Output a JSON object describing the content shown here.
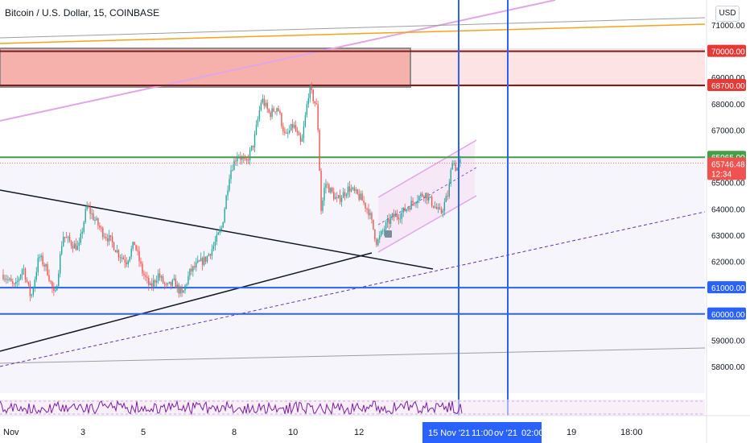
{
  "header": {
    "title": "Bitcoin / U.S. Dollar, 15, COINBASE",
    "currency": "USD"
  },
  "colors": {
    "up": "#26a69a",
    "down": "#ef5350",
    "blue_line": "#2962ff",
    "green_line": "#43a047",
    "red_zone_fill": "#f4a09a",
    "red_zone_stroke": "#7d1f1f",
    "rsi": "#7b1fa2",
    "pink_channel": "#e1a6e6",
    "orange_line": "#f7a21b"
  },
  "chart_data": {
    "type": "candlestick",
    "title": "Bitcoin / U.S. Dollar, 15, COINBASE",
    "y_range": [
      57300,
      72000
    ],
    "y_ticks": [
      58000,
      59000,
      60000,
      61000,
      62000,
      63000,
      64000,
      65000,
      66000,
      67000,
      68000,
      69000,
      70000,
      71000
    ],
    "x_ticks": [
      "Nov",
      "3",
      "5",
      "8",
      "10",
      "12",
      "19",
      "18:00"
    ],
    "price_path": [
      [
        0,
        61500
      ],
      [
        3,
        61000
      ],
      [
        5,
        61800
      ],
      [
        7,
        60600
      ],
      [
        9,
        62200
      ],
      [
        11,
        61700
      ],
      [
        13,
        60600
      ],
      [
        15,
        63000
      ],
      [
        17,
        62700
      ],
      [
        19,
        62500
      ],
      [
        21,
        64100
      ],
      [
        23,
        63600
      ],
      [
        25,
        63100
      ],
      [
        27,
        62800
      ],
      [
        29,
        62300
      ],
      [
        31,
        62000
      ],
      [
        33,
        62700
      ],
      [
        35,
        61600
      ],
      [
        37,
        61000
      ],
      [
        39,
        61500
      ],
      [
        41,
        61000
      ],
      [
        43,
        61200
      ],
      [
        45,
        60700
      ],
      [
        47,
        61600
      ],
      [
        49,
        61900
      ],
      [
        51,
        62100
      ],
      [
        53,
        62600
      ],
      [
        55,
        63300
      ],
      [
        57,
        65400
      ],
      [
        59,
        66100
      ],
      [
        61,
        65700
      ],
      [
        63,
        66500
      ],
      [
        65,
        68200
      ],
      [
        67,
        67600
      ],
      [
        69,
        67900
      ],
      [
        71,
        66700
      ],
      [
        73,
        67200
      ],
      [
        75,
        66400
      ],
      [
        77,
        68600
      ],
      [
        79,
        67800
      ],
      [
        80,
        63900
      ],
      [
        81,
        65000
      ],
      [
        84,
        64300
      ],
      [
        87,
        64800
      ],
      [
        90,
        64400
      ],
      [
        92,
        63900
      ],
      [
        94,
        62700
      ],
      [
        96,
        63300
      ],
      [
        98,
        63700
      ],
      [
        100,
        63800
      ],
      [
        102,
        64100
      ],
      [
        104,
        64400
      ],
      [
        106,
        64600
      ],
      [
        108,
        64200
      ],
      [
        110,
        63800
      ],
      [
        112,
        64600
      ],
      [
        113,
        65900
      ],
      [
        114,
        65500
      ],
      [
        115,
        65750
      ]
    ],
    "horizontal_levels": [
      {
        "price": 70000,
        "label": "70000.00",
        "color": "#7d1f1f",
        "label_bg": "#e53935"
      },
      {
        "price": 68700,
        "label": "68700.00",
        "color": "#7d1f1f",
        "label_bg": "#e53935"
      },
      {
        "price": 65965,
        "label": "65965.00",
        "color": "#43a047",
        "label_bg": "#43a047"
      },
      {
        "price": 61000,
        "label": "61000.00",
        "color": "#2962ff",
        "label_bg": "#2962ff"
      },
      {
        "price": 60000,
        "label": "60000.00",
        "color": "#2962ff",
        "label_bg": "#2962ff"
      }
    ],
    "last_price": {
      "value": "65746.48",
      "countdown": "12:34",
      "price": 65746.48
    },
    "time_markers": [
      "15 Nov '21",
      "11:00",
      "ov '21",
      "02:00"
    ]
  }
}
